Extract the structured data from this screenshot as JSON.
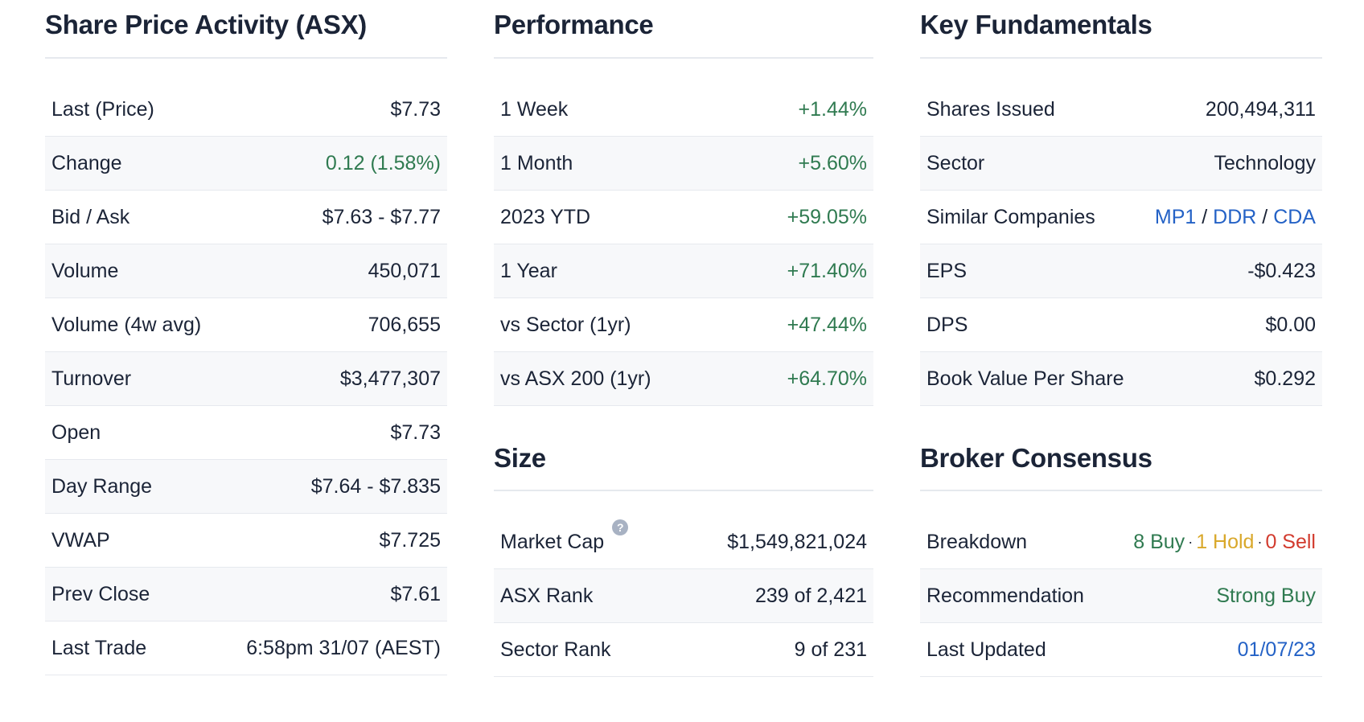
{
  "share_price": {
    "title": "Share Price Activity (ASX)",
    "rows": [
      {
        "label": "Last (Price)",
        "value": "$7.73"
      },
      {
        "label": "Change",
        "value": "0.12 (1.58%)"
      },
      {
        "label": "Bid / Ask",
        "value": "$7.63 - $7.77"
      },
      {
        "label": "Volume",
        "value": "450,071"
      },
      {
        "label": "Volume (4w avg)",
        "value": "706,655"
      },
      {
        "label": "Turnover",
        "value": "$3,477,307"
      },
      {
        "label": "Open",
        "value": "$7.73"
      },
      {
        "label": "Day Range",
        "value": "$7.64 - $7.835"
      },
      {
        "label": "VWAP",
        "value": "$7.725"
      },
      {
        "label": "Prev Close",
        "value": "$7.61"
      },
      {
        "label": "Last Trade",
        "value": "6:58pm 31/07 (AEST)"
      }
    ]
  },
  "performance": {
    "title": "Performance",
    "rows": [
      {
        "label": "1 Week",
        "value": "+1.44%"
      },
      {
        "label": "1 Month",
        "value": "+5.60%"
      },
      {
        "label": "2023 YTD",
        "value": "+59.05%"
      },
      {
        "label": "1 Year",
        "value": "+71.40%"
      },
      {
        "label": "vs Sector (1yr)",
        "value": "+47.44%"
      },
      {
        "label": "vs ASX 200 (1yr)",
        "value": "+64.70%"
      }
    ]
  },
  "size": {
    "title": "Size",
    "help_icon": "?",
    "rows": [
      {
        "label": "Market Cap",
        "value": "$1,549,821,024"
      },
      {
        "label": "ASX Rank",
        "value": "239 of 2,421"
      },
      {
        "label": "Sector Rank",
        "value": "9 of 231"
      }
    ]
  },
  "fundamentals": {
    "title": "Key Fundamentals",
    "rows": [
      {
        "label": "Shares Issued",
        "value": "200,494,311"
      },
      {
        "label": "Sector",
        "value": "Technology"
      },
      {
        "label": "Similar Companies",
        "links": [
          "MP1",
          "DDR",
          "CDA"
        ],
        "separator": "/"
      },
      {
        "label": "EPS",
        "value": "-$0.423"
      },
      {
        "label": "DPS",
        "value": "$0.00"
      },
      {
        "label": "Book Value Per Share",
        "value": "$0.292"
      }
    ]
  },
  "broker": {
    "title": "Broker Consensus",
    "breakdown": {
      "label": "Breakdown",
      "buy": "8 Buy",
      "hold": "1 Hold",
      "sell": "0 Sell",
      "dot": "·"
    },
    "recommendation": {
      "label": "Recommendation",
      "value": "Strong Buy"
    },
    "last_updated": {
      "label": "Last Updated",
      "value": "01/07/23"
    }
  },
  "colors": {
    "positive": "#2f7a50",
    "hold": "#d9a82b",
    "negative": "#d23b2e",
    "link": "#2462c6",
    "text": "#1b2437",
    "row_alt_bg": "#f7f8fa",
    "divider": "#e6e9ee"
  }
}
